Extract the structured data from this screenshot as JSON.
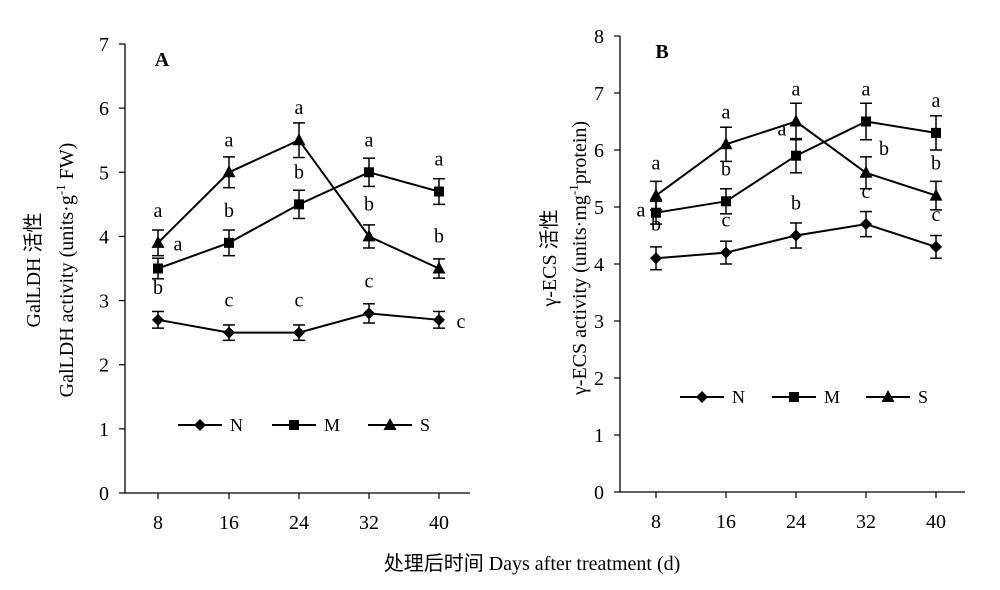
{
  "chart_data": [
    {
      "type": "line",
      "panel_label": "A",
      "x": [
        8,
        16,
        24,
        32,
        40
      ],
      "xlabel": "处理后时间  Days after treatment (d)",
      "ylabel": "GalLDH 活性",
      "ylabel2": "GalLDH activity (units·g",
      "ylabel2_sup": "-1",
      "ylabel2_end": " FW)",
      "ylim": [
        0,
        7
      ],
      "yticks": [
        0,
        1,
        2,
        3,
        4,
        5,
        6,
        7
      ],
      "xticks": [
        "8",
        "16",
        "24",
        "32",
        "40"
      ],
      "legend_position": "bottom-center",
      "series": [
        {
          "name": "N",
          "marker": "diamond",
          "values": [
            2.7,
            2.5,
            2.5,
            2.8,
            2.7
          ],
          "errors": [
            0.13,
            0.12,
            0.12,
            0.15,
            0.13
          ],
          "labels": [
            "b",
            "c",
            "c",
            "c",
            "c"
          ]
        },
        {
          "name": "M",
          "marker": "square",
          "values": [
            3.5,
            3.9,
            4.5,
            5.0,
            4.7
          ],
          "errors": [
            0.16,
            0.2,
            0.22,
            0.22,
            0.2
          ],
          "labels": [
            "a",
            "b",
            "b",
            "a",
            "a"
          ]
        },
        {
          "name": "S",
          "marker": "triangle",
          "values": [
            3.9,
            5.0,
            5.5,
            4.0,
            3.5
          ],
          "errors": [
            0.2,
            0.24,
            0.27,
            0.18,
            0.15
          ],
          "labels": [
            "a",
            "a",
            "a",
            "b",
            "b"
          ]
        }
      ]
    },
    {
      "type": "line",
      "panel_label": "B",
      "x": [
        8,
        16,
        24,
        32,
        40
      ],
      "ylabel": "γ-ECS 活性",
      "ylabel2": "γ-ECS activity (units·mg",
      "ylabel2_sup": "-1",
      "ylabel2_end": "protein)",
      "ylim": [
        0,
        8
      ],
      "yticks": [
        0,
        1,
        2,
        3,
        4,
        5,
        6,
        7,
        8
      ],
      "xticks": [
        "8",
        "16",
        "24",
        "32",
        "40"
      ],
      "legend_position": "bottom-center",
      "series": [
        {
          "name": "N",
          "marker": "diamond",
          "values": [
            4.1,
            4.2,
            4.5,
            4.7,
            4.3
          ],
          "errors": [
            0.2,
            0.2,
            0.22,
            0.22,
            0.2
          ],
          "labels": [
            "b",
            "c",
            "b",
            "c",
            "c"
          ]
        },
        {
          "name": "M",
          "marker": "square",
          "values": [
            4.9,
            5.1,
            5.9,
            6.5,
            6.3
          ],
          "errors": [
            0.2,
            0.22,
            0.3,
            0.32,
            0.3
          ],
          "labels": [
            "a",
            "b",
            "a",
            "a",
            "a"
          ]
        },
        {
          "name": "S",
          "marker": "triangle",
          "values": [
            5.2,
            6.1,
            6.5,
            5.6,
            5.2
          ],
          "errors": [
            0.25,
            0.3,
            0.32,
            0.28,
            0.25
          ],
          "labels": [
            "a",
            "a",
            "a",
            "b",
            "b"
          ]
        }
      ]
    }
  ]
}
